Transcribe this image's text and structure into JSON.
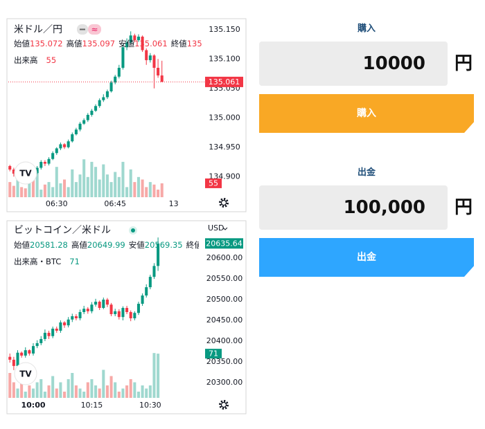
{
  "chart_data": [
    {
      "type": "candlestick",
      "title": "米ドル／円",
      "ohlc_labels": [
        "始値",
        "高値",
        "安値",
        "終値"
      ],
      "volume_label": "出来高",
      "open": [
        134.918,
        134.912,
        134.905,
        134.915,
        134.908,
        134.902,
        134.91,
        134.906,
        134.915,
        134.925,
        134.922,
        134.93,
        134.94,
        134.948,
        134.955,
        134.95,
        134.96,
        134.972,
        134.98,
        134.99,
        134.996,
        135.005,
        135.012,
        135.02,
        135.03,
        135.035,
        135.045,
        135.06,
        135.07,
        135.085,
        135.12,
        135.128,
        135.14,
        135.132,
        135.138,
        135.115,
        135.098,
        135.106,
        135.085,
        135.072
      ],
      "high": [
        134.92,
        134.915,
        134.918,
        134.917,
        134.91,
        134.912,
        134.912,
        134.918,
        134.928,
        134.928,
        134.933,
        134.943,
        134.95,
        134.958,
        134.957,
        134.963,
        134.975,
        134.983,
        134.993,
        134.999,
        135.008,
        135.015,
        135.023,
        135.033,
        135.04,
        135.048,
        135.063,
        135.073,
        135.09,
        135.125,
        135.135,
        135.147,
        135.143,
        135.142,
        135.14,
        135.118,
        135.11,
        135.108,
        135.1,
        135.097
      ],
      "low": [
        134.909,
        134.9,
        134.902,
        134.905,
        134.898,
        134.9,
        134.903,
        134.904,
        134.912,
        134.918,
        134.919,
        134.928,
        134.937,
        134.945,
        134.947,
        134.948,
        134.958,
        134.97,
        134.977,
        134.988,
        134.993,
        135.002,
        135.01,
        135.017,
        135.027,
        135.032,
        135.043,
        135.057,
        135.067,
        135.082,
        135.115,
        135.125,
        135.128,
        135.129,
        135.112,
        135.09,
        135.094,
        135.05,
        135.068,
        135.061
      ],
      "close": [
        134.912,
        134.905,
        134.915,
        134.908,
        134.902,
        134.91,
        134.906,
        134.915,
        134.925,
        134.922,
        134.93,
        134.94,
        134.948,
        134.955,
        134.95,
        134.96,
        134.972,
        134.98,
        134.99,
        134.996,
        135.005,
        135.012,
        135.02,
        135.03,
        135.035,
        135.045,
        135.06,
        135.07,
        135.085,
        135.12,
        135.128,
        135.14,
        135.132,
        135.138,
        135.115,
        135.098,
        135.106,
        135.085,
        135.072,
        135.061
      ],
      "volume": [
        60,
        45,
        90,
        40,
        35,
        70,
        80,
        110,
        30,
        50,
        60,
        40,
        120,
        55,
        70,
        40,
        110,
        60,
        90,
        150,
        80,
        140,
        120,
        70,
        130,
        90,
        60,
        100,
        80,
        140,
        40,
        110,
        60,
        80,
        70,
        40,
        60,
        50,
        30,
        55
      ],
      "up_color": "#089981",
      "down_color": "#f23645",
      "volume_up_color": "#9fd8cf",
      "volume_down_color": "#f7a9a7",
      "xlim": [
        -0.4,
        49
      ],
      "xticks": [
        {
          "value": 12,
          "label": "06:30"
        },
        {
          "value": 27,
          "label": "06:45"
        },
        {
          "value": 42,
          "label": "13"
        }
      ],
      "ylim": [
        134.865,
        135.165
      ],
      "yticks": [
        {
          "value": 134.9,
          "label": "134.900"
        },
        {
          "value": 134.95,
          "label": "134.950"
        },
        {
          "value": 135,
          "label": "135.000"
        },
        {
          "value": 135.05,
          "label": "135.050"
        },
        {
          "value": 135.1,
          "label": "135.100"
        },
        {
          "value": 135.15,
          "label": "135.150"
        }
      ],
      "volume_ylim": [
        0,
        200
      ]
    },
    {
      "type": "candlestick",
      "title": "ビットコイン／米ドル",
      "ohlc_labels": [
        "始値",
        "高値",
        "安値",
        "終値"
      ],
      "volume_label": "出来高・BTC",
      "unit": "USD",
      "open": [
        20362,
        20355,
        20340,
        20372,
        20365,
        20378,
        20370,
        20388,
        20395,
        20405,
        20420,
        20412,
        20430,
        20425,
        20445,
        20438,
        20452,
        20460,
        20455,
        20470,
        20478,
        20472,
        20488,
        20495,
        20480,
        20500,
        20488,
        20465,
        20472,
        20458,
        20480,
        20470,
        20455,
        20468,
        20490,
        20510,
        20530,
        20555,
        20581.28
      ],
      "high": [
        20370,
        20362,
        20378,
        20375,
        20385,
        20380,
        20395,
        20402,
        20412,
        20428,
        20425,
        20435,
        20435,
        20450,
        20448,
        20458,
        20466,
        20465,
        20476,
        20485,
        20482,
        20494,
        20502,
        20498,
        20505,
        20504,
        20492,
        20478,
        20477,
        20484,
        20485,
        20474,
        20472,
        20495,
        20515,
        20537,
        20560,
        20588,
        20649.99
      ],
      "low": [
        20348,
        20330,
        20336,
        20360,
        20360,
        20365,
        20365,
        20383,
        20390,
        20400,
        20405,
        20407,
        20420,
        20420,
        20432,
        20433,
        20446,
        20450,
        20450,
        20465,
        20466,
        20467,
        20483,
        20475,
        20477,
        20482,
        20460,
        20460,
        20452,
        20450,
        20465,
        20448,
        20450,
        20463,
        20485,
        20505,
        20525,
        20550,
        20569.35
      ],
      "close": [
        20355,
        20340,
        20372,
        20365,
        20378,
        20370,
        20388,
        20395,
        20405,
        20420,
        20412,
        20430,
        20425,
        20445,
        20438,
        20452,
        20460,
        20455,
        20470,
        20478,
        20472,
        20488,
        20495,
        20480,
        20500,
        20488,
        20465,
        20472,
        20458,
        20480,
        20470,
        20455,
        20468,
        20490,
        20510,
        20530,
        20555,
        20581.28,
        20635.64
      ],
      "volume": [
        40,
        25,
        15,
        30,
        10,
        20,
        15,
        25,
        30,
        10,
        20,
        35,
        15,
        25,
        10,
        30,
        40,
        20,
        15,
        10,
        25,
        30,
        20,
        15,
        45,
        20,
        35,
        25,
        10,
        15,
        20,
        30,
        25,
        10,
        20,
        15,
        20,
        72,
        71
      ],
      "up_color": "#089981",
      "down_color": "#f23645",
      "volume_up_color": "#9fd8cf",
      "volume_down_color": "#f7a9a7",
      "xlim": [
        -0.4,
        49
      ],
      "xticks": [
        {
          "value": 6,
          "label": "10:00"
        },
        {
          "value": 21,
          "label": "10:15"
        },
        {
          "value": 36,
          "label": "10:30"
        }
      ],
      "ylim": [
        20263,
        20652
      ],
      "yticks": [
        {
          "value": 20300,
          "label": "20300.00"
        },
        {
          "value": 20350,
          "label": "20350.00"
        },
        {
          "value": 20400,
          "label": "20400.00"
        },
        {
          "value": 20450,
          "label": "20450.00"
        },
        {
          "value": 20500,
          "label": "20500.00"
        },
        {
          "value": 20550,
          "label": "20550.00"
        },
        {
          "value": 20600,
          "label": "20600.00"
        }
      ],
      "volume_ylim": [
        0,
        100
      ]
    }
  ],
  "panel": {
    "buy": {
      "label": "購入",
      "amount": "10000",
      "unit": "円",
      "button": "購入"
    },
    "withdraw": {
      "label": "出金",
      "amount": "100,000",
      "unit": "円",
      "button": "出金"
    }
  }
}
